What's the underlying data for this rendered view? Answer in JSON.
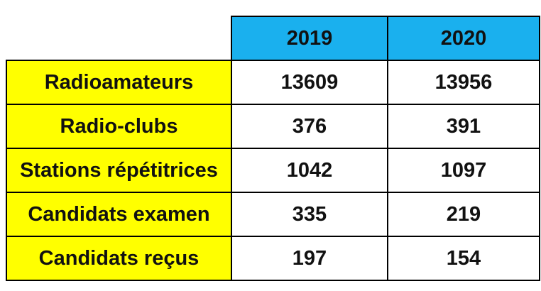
{
  "table": {
    "columns": [
      "2019",
      "2020"
    ],
    "rows": [
      [
        "Radioamateurs",
        13609,
        13956
      ],
      [
        "Radio-clubs",
        376,
        391
      ],
      [
        "Stations répétitrices",
        1042,
        1097
      ],
      [
        "Candidats examen",
        335,
        219
      ],
      [
        "Candidats reçus",
        197,
        154
      ]
    ]
  }
}
